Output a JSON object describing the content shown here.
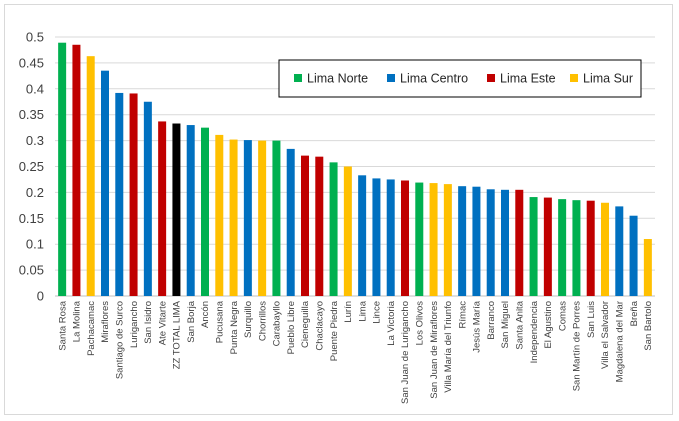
{
  "chart_data": {
    "type": "bar",
    "title": "",
    "xlabel": "",
    "ylabel": "",
    "ylim": [
      0,
      0.5
    ],
    "yticks": [
      0,
      0.05,
      0.1,
      0.15,
      0.2,
      0.25,
      0.3,
      0.35,
      0.4,
      0.45,
      0.5
    ],
    "ytick_labels": [
      "0",
      "0.05",
      "0.1",
      "0.15",
      "0.2",
      "0.25",
      "0.3",
      "0.35",
      "0.4",
      "0.45",
      "0.5"
    ],
    "grid": true,
    "legend_position": "top-right",
    "groups": [
      {
        "name": "Lima Norte",
        "color": "#00b050"
      },
      {
        "name": "Lima Centro",
        "color": "#0070c0"
      },
      {
        "name": "Lima Este",
        "color": "#c00000"
      },
      {
        "name": "Lima Sur",
        "color": "#ffc000"
      }
    ],
    "bars": [
      {
        "category": "Santa Rosa",
        "value": 0.489,
        "group": "Lima Norte"
      },
      {
        "category": "La Molina",
        "value": 0.485,
        "group": "Lima Este"
      },
      {
        "category": "Pachacamac",
        "value": 0.463,
        "group": "Lima Sur"
      },
      {
        "category": "Miraflores",
        "value": 0.435,
        "group": "Lima Centro"
      },
      {
        "category": "Santiago de Surco",
        "value": 0.392,
        "group": "Lima Centro"
      },
      {
        "category": "Lurigancho",
        "value": 0.391,
        "group": "Lima Este"
      },
      {
        "category": "San Isidro",
        "value": 0.375,
        "group": "Lima Centro"
      },
      {
        "category": "Ate Vitarte",
        "value": 0.337,
        "group": "Lima Este"
      },
      {
        "category": "ZZ TOTAL LIMA",
        "value": 0.333,
        "group": "",
        "color": "#000000"
      },
      {
        "category": "San Borja",
        "value": 0.33,
        "group": "Lima Centro"
      },
      {
        "category": "Ancón",
        "value": 0.325,
        "group": "Lima Norte"
      },
      {
        "category": "Pucusana",
        "value": 0.311,
        "group": "Lima Sur"
      },
      {
        "category": "Punta Negra",
        "value": 0.302,
        "group": "Lima Sur"
      },
      {
        "category": "Surquillo",
        "value": 0.301,
        "group": "Lima Centro"
      },
      {
        "category": "Chorrillos",
        "value": 0.3,
        "group": "Lima Sur"
      },
      {
        "category": "Carabayllo",
        "value": 0.3,
        "group": "Lima Norte"
      },
      {
        "category": "Pueblo Libre",
        "value": 0.284,
        "group": "Lima Centro"
      },
      {
        "category": "Cieneguilla",
        "value": 0.271,
        "group": "Lima Este"
      },
      {
        "category": "Chaclacayo",
        "value": 0.269,
        "group": "Lima Este"
      },
      {
        "category": "Puente Piedra",
        "value": 0.258,
        "group": "Lima Norte"
      },
      {
        "category": "Lurín",
        "value": 0.25,
        "group": "Lima Sur"
      },
      {
        "category": "Lima",
        "value": 0.233,
        "group": "Lima Centro"
      },
      {
        "category": "Lince",
        "value": 0.227,
        "group": "Lima Centro"
      },
      {
        "category": "La Victoria",
        "value": 0.225,
        "group": "Lima Centro"
      },
      {
        "category": "San Juan de Lurigancho",
        "value": 0.223,
        "group": "Lima Este"
      },
      {
        "category": "Los Olivos",
        "value": 0.219,
        "group": "Lima Norte"
      },
      {
        "category": "San Juan de Miraflores",
        "value": 0.218,
        "group": "Lima Sur"
      },
      {
        "category": "Villa María del Triunfo",
        "value": 0.216,
        "group": "Lima Sur"
      },
      {
        "category": "Rímac",
        "value": 0.212,
        "group": "Lima Centro"
      },
      {
        "category": "Jesús María",
        "value": 0.211,
        "group": "Lima Centro"
      },
      {
        "category": "Barranco",
        "value": 0.206,
        "group": "Lima Centro"
      },
      {
        "category": "San Miguel",
        "value": 0.205,
        "group": "Lima Centro"
      },
      {
        "category": "Santa Anita",
        "value": 0.205,
        "group": "Lima Este"
      },
      {
        "category": "Independencia",
        "value": 0.191,
        "group": "Lima Norte"
      },
      {
        "category": "El Agustino",
        "value": 0.19,
        "group": "Lima Este"
      },
      {
        "category": "Comas",
        "value": 0.187,
        "group": "Lima Norte"
      },
      {
        "category": "San Martín de Porres",
        "value": 0.185,
        "group": "Lima Norte"
      },
      {
        "category": "San Luis",
        "value": 0.184,
        "group": "Lima Este"
      },
      {
        "category": "Villa el Salvador",
        "value": 0.18,
        "group": "Lima Sur"
      },
      {
        "category": "Magdalena del Mar",
        "value": 0.173,
        "group": "Lima Centro"
      },
      {
        "category": "Breña",
        "value": 0.155,
        "group": "Lima Centro"
      },
      {
        "category": "San Bartolo",
        "value": 0.11,
        "group": "Lima Sur"
      }
    ]
  }
}
